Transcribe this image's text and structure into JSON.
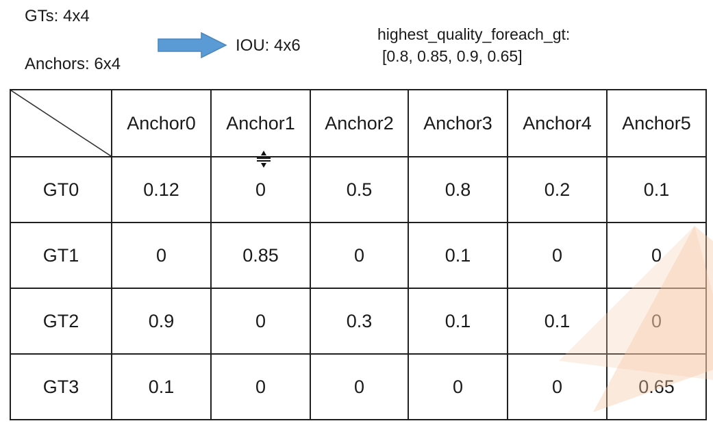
{
  "slide": {
    "gts_label": "GTs: 4x4",
    "anchors_label": "Anchors: 6x4",
    "iou_label": "IOU: 4x6",
    "highest_quality_title": "highest_quality_foreach_gt:",
    "highest_quality_values": "[0.8, 0.85, 0.9, 0.65]"
  },
  "icons": {
    "arrow": "right-arrow",
    "cursor": "row-resize-cursor"
  },
  "colors": {
    "arrow_fill": "#5b9bd5",
    "arrow_stroke": "#4a85bd",
    "cell_highlight": "#d9e2f3",
    "watermark": "#f6c9a8",
    "text": "#1a1a1a",
    "border": "#1f1f1f"
  },
  "table": {
    "columns": [
      "",
      "Anchor0",
      "Anchor1",
      "Anchor2",
      "Anchor3",
      "Anchor4",
      "Anchor5"
    ],
    "rows": [
      {
        "label": "GT0",
        "values": [
          "0.12",
          "0",
          "0.5",
          "0.8",
          "0.2",
          "0.1"
        ],
        "highlight_col": 3
      },
      {
        "label": "GT1",
        "values": [
          "0",
          "0.85",
          "0",
          "0.1",
          "0",
          "0"
        ],
        "highlight_col": 1
      },
      {
        "label": "GT2",
        "values": [
          "0.9",
          "0",
          "0.3",
          "0.1",
          "0.1",
          "0"
        ],
        "highlight_col": 0
      },
      {
        "label": "GT3",
        "values": [
          "0.1",
          "0",
          "0",
          "0",
          "0",
          "0.65"
        ],
        "highlight_col": 5
      }
    ]
  }
}
